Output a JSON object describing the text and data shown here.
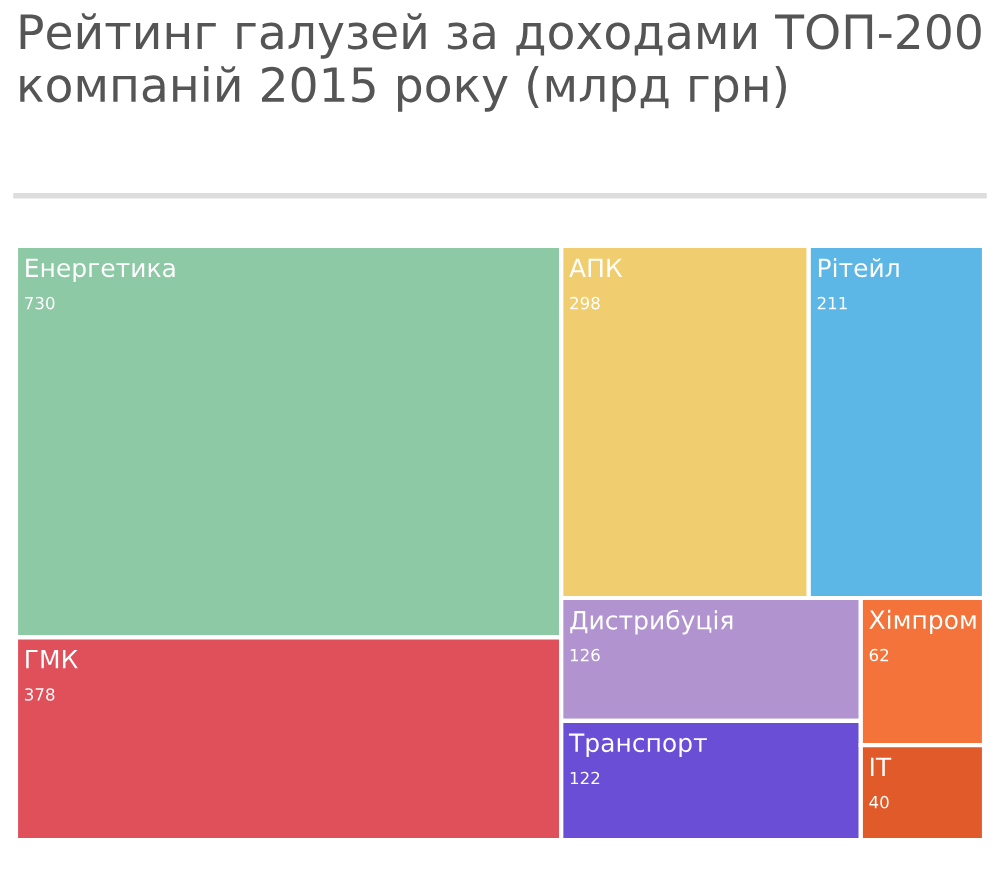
{
  "chart_data": {
    "type": "other",
    "title": "Рейтинг галузей за доходами ТОП-200 компаній 2015 року (млрд грн)",
    "categories": [
      "Енергетика",
      "ГМК",
      "АПК",
      "Рітейл",
      "Дистрибуція",
      "Транспорт",
      "Хімпром",
      "IT"
    ],
    "values": [
      730,
      378,
      298,
      211,
      126,
      122,
      62,
      40
    ],
    "colors": [
      "#8ec9a6",
      "#e0505a",
      "#f0cd6e",
      "#5db7e6",
      "#b093cf",
      "#6a4fd6",
      "#f4733a",
      "#e05a2a"
    ],
    "data_labels": true
  }
}
